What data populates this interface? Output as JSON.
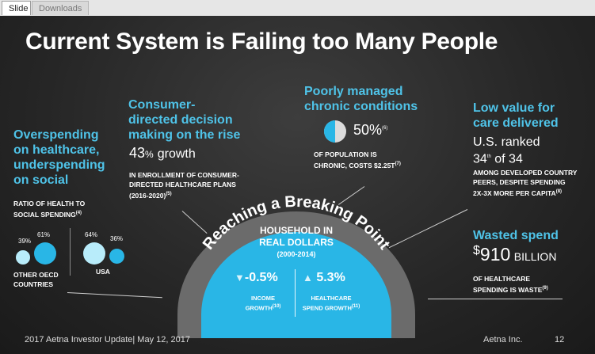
{
  "tabs": [
    {
      "label": "Slide"
    },
    {
      "label": "Downloads"
    }
  ],
  "slide": {
    "title": "Current System is Failing too Many People",
    "overspending": {
      "heading_1": "Overspending",
      "heading_2": "on healthcare,",
      "heading_3": "underspending",
      "heading_4": "on social",
      "ratio_label_1": "RATIO OF HEALTH TO",
      "ratio_label_2": "SOCIAL SPENDING",
      "ratio_ref": "(4)",
      "oecd_pct_a": "39%",
      "oecd_pct_b": "61%",
      "oecd_label_1": "OTHER OECD",
      "oecd_label_2": "COUNTRIES",
      "usa_pct_a": "64%",
      "usa_pct_b": "36%",
      "usa_label": "USA"
    },
    "consumer": {
      "heading_1": "Consumer-",
      "heading_2": "directed decision",
      "heading_3": "making on the rise",
      "stat": "43",
      "stat_unit": "%",
      "stat_suffix": "growth",
      "desc_1": "IN ENROLLMENT OF CONSUMER-",
      "desc_2": "DIRECTED HEALTHCARE PLANS",
      "desc_3": "(2016-2020)",
      "ref": "(5)"
    },
    "chronic": {
      "heading_1": "Poorly managed",
      "heading_2": "chronic conditions",
      "stat": "50%",
      "ref": "(6)",
      "desc_1": "OF POPULATION IS",
      "desc_2": "CHRONIC, COSTS $2.25T",
      "desc_ref": "(7)"
    },
    "low_value": {
      "heading_1": "Low value for",
      "heading_2": "care delivered",
      "stat_1": "U.S. ranked",
      "stat_2": "34",
      "stat_2_sup": "th",
      "stat_2_suffix": "of 34",
      "desc_1": "AMONG DEVELOPED COUNTRY",
      "desc_2": "PEERS, DESPITE SPENDING",
      "desc_3": "2X-3X MORE PER CAPITA",
      "ref": "(8)"
    },
    "waste": {
      "heading": "Wasted spend",
      "currency": "$",
      "amount": "910",
      "unit": "BILLION",
      "desc_1": "OF HEALTHCARE",
      "desc_2": "SPENDING IS WASTE",
      "ref": "(9)"
    },
    "center": {
      "arc_text": "Reaching a Breaking Point",
      "title_1": "HOUSEHOLD IN",
      "title_2": "REAL DOLLARS",
      "period": "(2000-2014)",
      "income_value": "-0.5%",
      "income_label_1": "INCOME",
      "income_label_2": "GROWTH",
      "income_ref": "(10)",
      "health_value": "5.3%",
      "health_label_1": "HEALTHCARE",
      "health_label_2": "SPEND GROWTH",
      "health_ref": "(11)"
    },
    "footer": {
      "left": "2017 Aetna Investor Update| May 12, 2017",
      "company": "Aetna Inc.",
      "page": "12"
    }
  },
  "colors": {
    "accent": "#29b6e6",
    "heading": "#4fc3e8",
    "arc": "#6b6b6b"
  },
  "icons": {
    "pie": "half-pie-icon",
    "down": "down-triangle-icon",
    "up": "up-triangle-icon"
  }
}
